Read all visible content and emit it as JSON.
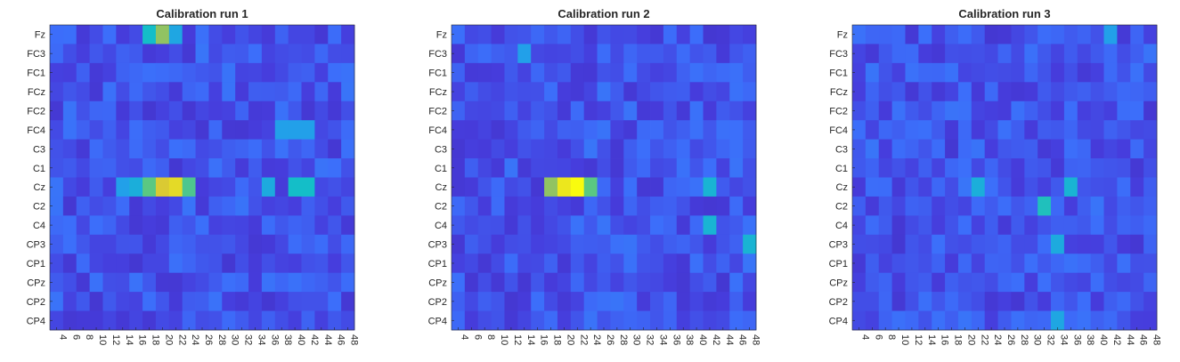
{
  "chart_data": [
    {
      "type": "heatmap",
      "title": "Calibration run 1",
      "rows": [
        "Fz",
        "FC3",
        "FC1",
        "FCz",
        "FC2",
        "FC4",
        "C3",
        "C1",
        "Cz",
        "C2",
        "C4",
        "CP3",
        "CP1",
        "CPz",
        "CP2",
        "CP4"
      ],
      "columns": [
        4,
        6,
        8,
        10,
        12,
        14,
        16,
        18,
        20,
        22,
        24,
        26,
        28,
        30,
        32,
        34,
        36,
        38,
        40,
        42,
        44,
        46,
        48
      ],
      "hot_cells": [
        {
          "row": "Fz",
          "col": 18,
          "value": 0.6
        },
        {
          "row": "Fz",
          "col": 20,
          "value": 0.78
        },
        {
          "row": "Fz",
          "col": 22,
          "value": 0.48
        },
        {
          "row": "Cz",
          "col": 14,
          "value": 0.45
        },
        {
          "row": "Cz",
          "col": 16,
          "value": 0.52
        },
        {
          "row": "Cz",
          "col": 18,
          "value": 0.72
        },
        {
          "row": "Cz",
          "col": 20,
          "value": 0.88
        },
        {
          "row": "Cz",
          "col": 22,
          "value": 0.92
        },
        {
          "row": "Cz",
          "col": 24,
          "value": 0.7
        },
        {
          "row": "Cz",
          "col": 36,
          "value": 0.5
        },
        {
          "row": "Cz",
          "col": 40,
          "value": 0.6
        },
        {
          "row": "Cz",
          "col": 42,
          "value": 0.6
        },
        {
          "row": "FC4",
          "col": 38,
          "value": 0.45
        },
        {
          "row": "FC4",
          "col": 40,
          "value": 0.45
        },
        {
          "row": "FC4",
          "col": 42,
          "value": 0.45
        }
      ]
    },
    {
      "type": "heatmap",
      "title": "Calibration run 2",
      "rows": [
        "Fz",
        "FC3",
        "FC1",
        "FCz",
        "FC2",
        "FC4",
        "C3",
        "C1",
        "Cz",
        "C2",
        "C4",
        "CP3",
        "CP1",
        "CPz",
        "CP2",
        "CP4"
      ],
      "columns": [
        4,
        6,
        8,
        10,
        12,
        14,
        16,
        18,
        20,
        22,
        24,
        26,
        28,
        30,
        32,
        34,
        36,
        38,
        40,
        42,
        44,
        46,
        48
      ],
      "hot_cells": [
        {
          "row": "Cz",
          "col": 18,
          "value": 0.78
        },
        {
          "row": "Cz",
          "col": 20,
          "value": 0.95
        },
        {
          "row": "Cz",
          "col": 22,
          "value": 1.0
        },
        {
          "row": "Cz",
          "col": 24,
          "value": 0.72
        },
        {
          "row": "Cz",
          "col": 42,
          "value": 0.55
        },
        {
          "row": "C4",
          "col": 42,
          "value": 0.55
        },
        {
          "row": "CP3",
          "col": 48,
          "value": 0.55
        },
        {
          "row": "FC3",
          "col": 14,
          "value": 0.45
        }
      ]
    },
    {
      "type": "heatmap",
      "title": "Calibration run 3",
      "rows": [
        "Fz",
        "FC3",
        "FC1",
        "FCz",
        "FC2",
        "FC4",
        "C3",
        "C1",
        "Cz",
        "C2",
        "C4",
        "CP3",
        "CP1",
        "CPz",
        "CP2",
        "CP4"
      ],
      "columns": [
        4,
        6,
        8,
        10,
        12,
        14,
        16,
        18,
        20,
        22,
        24,
        26,
        28,
        30,
        32,
        34,
        36,
        38,
        40,
        42,
        44,
        46,
        48
      ],
      "hot_cells": [
        {
          "row": "C2",
          "col": 32,
          "value": 0.62
        },
        {
          "row": "Cz",
          "col": 22,
          "value": 0.52
        },
        {
          "row": "Cz",
          "col": 36,
          "value": 0.55
        },
        {
          "row": "CP3",
          "col": 34,
          "value": 0.5
        },
        {
          "row": "CP4",
          "col": 34,
          "value": 0.48
        },
        {
          "row": "Fz",
          "col": 42,
          "value": 0.45
        }
      ]
    }
  ],
  "colormap": {
    "low": "#3e26a8",
    "mid": "#2e87f7",
    "high": "#f9fb0e"
  }
}
